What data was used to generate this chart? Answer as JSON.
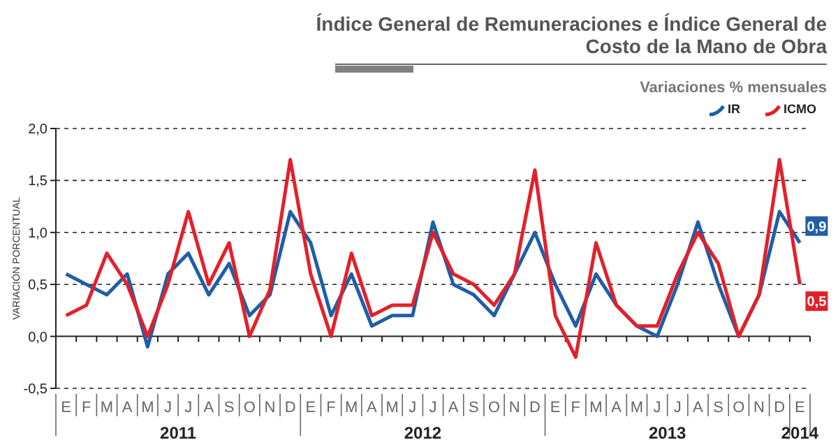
{
  "chart_data": {
    "type": "line",
    "title": "Índice General de Remuneraciones e Índice General de Costo de la Mano de Obra",
    "subtitle": "Variaciones % mensuales",
    "ylabel": "VARIACIÓN PORCENTUAL",
    "categories": [
      "E",
      "F",
      "M",
      "A",
      "M",
      "J",
      "J",
      "A",
      "S",
      "O",
      "N",
      "D",
      "E",
      "F",
      "M",
      "A",
      "M",
      "J",
      "J",
      "A",
      "S",
      "O",
      "N",
      "D",
      "E",
      "F",
      "M",
      "A",
      "M",
      "J",
      "J",
      "A",
      "S",
      "O",
      "N",
      "D",
      "E"
    ],
    "series": [
      {
        "name": "IR",
        "color": "#1f5ea8",
        "values": [
          0.6,
          0.5,
          0.4,
          0.6,
          -0.1,
          0.6,
          0.8,
          0.4,
          0.7,
          0.2,
          0.4,
          1.2,
          0.9,
          0.2,
          0.6,
          0.1,
          0.2,
          0.2,
          1.1,
          0.5,
          0.4,
          0.2,
          0.6,
          1.0,
          0.5,
          0.1,
          0.6,
          0.3,
          0.1,
          0.0,
          0.5,
          1.1,
          0.5,
          0.0,
          0.4,
          1.2,
          0.9
        ],
        "value_labels": [
          null,
          null,
          null,
          null,
          null,
          null,
          null,
          null,
          null,
          null,
          null,
          null,
          null,
          null,
          null,
          null,
          null,
          null,
          null,
          null,
          null,
          null,
          null,
          null,
          null,
          null,
          null,
          null,
          null,
          null,
          null,
          null,
          null,
          null,
          null,
          null,
          "0,9"
        ]
      },
      {
        "name": "ICMO",
        "color": "#e3202a",
        "values": [
          0.2,
          0.3,
          0.8,
          0.5,
          0.0,
          0.5,
          1.2,
          0.5,
          0.9,
          0.0,
          0.45,
          1.7,
          0.6,
          0.0,
          0.8,
          0.2,
          0.3,
          0.3,
          1.0,
          0.6,
          0.5,
          0.3,
          0.6,
          1.6,
          0.2,
          -0.2,
          0.9,
          0.3,
          0.1,
          0.1,
          0.6,
          1.0,
          0.7,
          0.0,
          0.4,
          1.7,
          0.5
        ],
        "value_labels": [
          null,
          null,
          null,
          null,
          null,
          null,
          null,
          null,
          null,
          null,
          null,
          null,
          null,
          null,
          null,
          null,
          null,
          null,
          null,
          null,
          null,
          null,
          null,
          null,
          null,
          null,
          null,
          null,
          null,
          null,
          null,
          null,
          null,
          null,
          null,
          null,
          "0,5"
        ]
      }
    ],
    "ylim": [
      -0.5,
      2.0
    ],
    "yticks": [
      {
        "value": -0.5,
        "label": "-0,5"
      },
      {
        "value": 0,
        "label": "0,0"
      },
      {
        "value": 0.5,
        "label": "0,5"
      },
      {
        "value": 1,
        "label": "1,0"
      },
      {
        "value": 1.5,
        "label": "1,5"
      },
      {
        "value": 2,
        "label": "2,0"
      }
    ],
    "grid": "y",
    "line_style": "solid",
    "legend": "top right",
    "annotations": [
      "2011",
      "2012",
      "2013",
      "2014"
    ]
  }
}
